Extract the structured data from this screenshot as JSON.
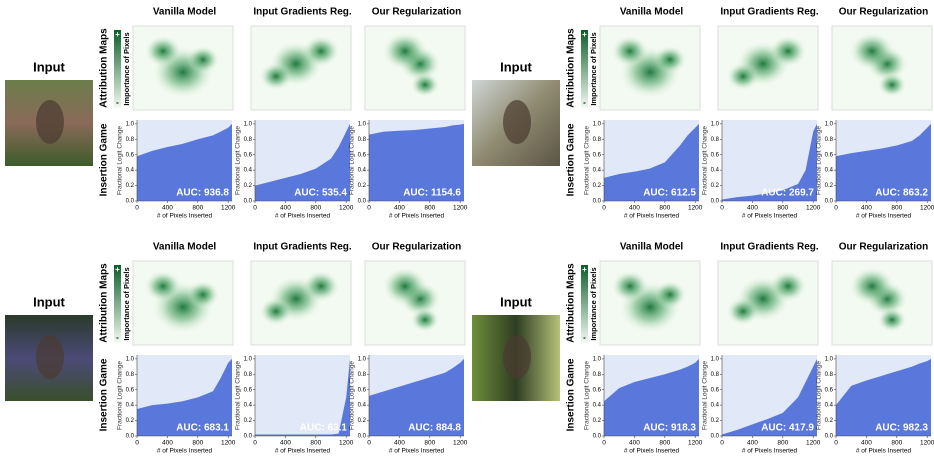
{
  "panels": [
    {
      "input_label": "Input",
      "row_labels": [
        "Attribution Maps",
        "Insertion Game"
      ],
      "colorbar_label": "Importance of Pixels",
      "colorbar_plus": "+",
      "colorbar_minus": "-"
    },
    {
      "input_label": "Input",
      "row_labels": [
        "Attribution Maps",
        "Insertion Game"
      ],
      "colorbar_label": "Importance of Pixels",
      "colorbar_plus": "+",
      "colorbar_minus": "-"
    },
    {
      "input_label": "Input",
      "row_labels": [
        "Attribution Maps",
        "Insertion Game"
      ],
      "colorbar_label": "Importance of Pixels",
      "colorbar_plus": "+",
      "colorbar_minus": "-"
    },
    {
      "input_label": "Input",
      "row_labels": [
        "Attribution Maps",
        "Insertion Game"
      ],
      "colorbar_label": "Importance of Pixels",
      "colorbar_plus": "+",
      "colorbar_minus": "-"
    }
  ],
  "chart_data": [
    {
      "type": "area",
      "title": "Vanilla Model",
      "x": [
        0,
        200,
        400,
        600,
        800,
        1000,
        1100,
        1200,
        1250
      ],
      "values": [
        0.58,
        0.65,
        0.7,
        0.74,
        0.8,
        0.85,
        0.9,
        0.95,
        1.0
      ],
      "color": "#5a78dc",
      "xlim": [
        0,
        1250
      ],
      "xticks": [
        0,
        400,
        800,
        1200
      ],
      "ylim": [
        0,
        1.05
      ],
      "yticks": [
        {
          "value": 0,
          "label": "0.0"
        },
        0.2,
        0.4,
        0.6,
        0.8,
        {
          "value": 1,
          "label": "1.0"
        }
      ],
      "xlabel": "# of Pixels Inserted",
      "ylabel": "Fractional Logit Change",
      "annotation": "AUC: 936.8"
    },
    {
      "type": "area",
      "title": "Input Gradients Reg.",
      "x": [
        0,
        200,
        400,
        600,
        800,
        1000,
        1100,
        1200,
        1250
      ],
      "values": [
        0.2,
        0.25,
        0.3,
        0.35,
        0.42,
        0.55,
        0.7,
        0.9,
        1.0
      ],
      "color": "#5a78dc",
      "xlim": [
        0,
        1250
      ],
      "xticks": [
        0,
        400,
        800,
        1200
      ],
      "ylim": [
        0,
        1.05
      ],
      "yticks": [
        {
          "value": 0,
          "label": "0.0"
        },
        0.2,
        0.4,
        0.6,
        0.8,
        {
          "value": 1,
          "label": "1.0"
        }
      ],
      "xlabel": "# of Pixels Inserted",
      "ylabel": "Fractional Logit Change",
      "annotation": "AUC: 535.4"
    },
    {
      "type": "area",
      "title": "Our Regularization",
      "x": [
        0,
        200,
        400,
        600,
        800,
        1000,
        1100,
        1200,
        1250
      ],
      "values": [
        0.86,
        0.9,
        0.91,
        0.92,
        0.94,
        0.96,
        0.98,
        0.99,
        1.0
      ],
      "color": "#5a78dc",
      "xlim": [
        0,
        1250
      ],
      "xticks": [
        0,
        400,
        800,
        1200
      ],
      "ylim": [
        0,
        1.05
      ],
      "yticks": [
        {
          "value": 0,
          "label": "0.0"
        },
        0.2,
        0.4,
        0.6,
        0.8,
        {
          "value": 1,
          "label": "1.0"
        }
      ],
      "xlabel": "# of Pixels Inserted",
      "ylabel": "Fractional Logit Change",
      "annotation": "AUC: 1154.6"
    },
    {
      "type": "area",
      "title": "Vanilla Model",
      "x": [
        0,
        200,
        400,
        600,
        800,
        1000,
        1100,
        1200,
        1250
      ],
      "values": [
        0.3,
        0.35,
        0.38,
        0.42,
        0.5,
        0.72,
        0.85,
        0.95,
        1.0
      ],
      "color": "#5a78dc",
      "xlim": [
        0,
        1250
      ],
      "xticks": [
        0,
        400,
        800,
        1200
      ],
      "ylim": [
        0,
        1.05
      ],
      "yticks": [
        {
          "value": 0,
          "label": "0.0"
        },
        0.2,
        0.4,
        0.6,
        0.8,
        {
          "value": 1,
          "label": "1.0"
        }
      ],
      "xlabel": "# of Pixels Inserted",
      "ylabel": "Fractional Logit Change",
      "annotation": "AUC: 612.5"
    },
    {
      "type": "area",
      "title": "Input Gradients Reg.",
      "x": [
        0,
        200,
        400,
        600,
        800,
        1000,
        1100,
        1200,
        1250
      ],
      "values": [
        0.02,
        0.05,
        0.07,
        0.1,
        0.14,
        0.22,
        0.4,
        0.9,
        1.0
      ],
      "color": "#5a78dc",
      "xlim": [
        0,
        1250
      ],
      "xticks": [
        0,
        400,
        800,
        1200
      ],
      "ylim": [
        0,
        1.05
      ],
      "yticks": [
        {
          "value": 0,
          "label": "0.0"
        },
        0.2,
        0.4,
        0.6,
        0.8,
        {
          "value": 1,
          "label": "1.0"
        }
      ],
      "xlabel": "# of Pixels Inserted",
      "ylabel": "Fractional Logit Change",
      "annotation": "AUC: 269.7"
    },
    {
      "type": "area",
      "title": "Our Regularization",
      "x": [
        0,
        200,
        400,
        600,
        800,
        1000,
        1100,
        1200,
        1250
      ],
      "values": [
        0.58,
        0.62,
        0.65,
        0.68,
        0.72,
        0.78,
        0.85,
        0.95,
        1.0
      ],
      "color": "#5a78dc",
      "xlim": [
        0,
        1250
      ],
      "xticks": [
        0,
        400,
        800,
        1200
      ],
      "ylim": [
        0,
        1.05
      ],
      "yticks": [
        {
          "value": 0,
          "label": "0.0"
        },
        0.2,
        0.4,
        0.6,
        0.8,
        {
          "value": 1,
          "label": "1.0"
        }
      ],
      "xlabel": "# of Pixels Inserted",
      "ylabel": "Fractional Logit Change",
      "annotation": "AUC: 863.2"
    },
    {
      "type": "area",
      "title": "Vanilla Model",
      "x": [
        0,
        200,
        400,
        600,
        800,
        1000,
        1100,
        1200,
        1250
      ],
      "values": [
        0.35,
        0.4,
        0.42,
        0.45,
        0.5,
        0.58,
        0.75,
        0.95,
        1.0
      ],
      "color": "#5a78dc",
      "xlim": [
        0,
        1250
      ],
      "xticks": [
        0,
        400,
        800,
        1200
      ],
      "ylim": [
        0,
        1.05
      ],
      "yticks": [
        {
          "value": 0,
          "label": "0.0"
        },
        0.2,
        0.4,
        0.6,
        0.8,
        {
          "value": 1,
          "label": "1.0"
        }
      ],
      "xlabel": "# of Pixels Inserted",
      "ylabel": "Fractional Logit Change",
      "annotation": "AUC: 683.1"
    },
    {
      "type": "area",
      "title": "Input Gradients Reg.",
      "x": [
        0,
        200,
        400,
        600,
        800,
        1000,
        1100,
        1200,
        1250
      ],
      "values": [
        0.02,
        0.02,
        0.02,
        0.02,
        0.02,
        0.02,
        0.03,
        0.5,
        1.0
      ],
      "color": "#5a78dc",
      "xlim": [
        0,
        1250
      ],
      "xticks": [
        0,
        400,
        800,
        1200
      ],
      "ylim": [
        0,
        1.05
      ],
      "yticks": [
        {
          "value": 0,
          "label": "0.0"
        },
        0.2,
        0.4,
        0.6,
        0.8,
        {
          "value": 1,
          "label": "1.0"
        }
      ],
      "xlabel": "# of Pixels Inserted",
      "ylabel": "Fractional Logit Change",
      "annotation": "AUC: 63.1"
    },
    {
      "type": "area",
      "title": "Our Regularization",
      "x": [
        0,
        200,
        400,
        600,
        800,
        1000,
        1100,
        1200,
        1250
      ],
      "values": [
        0.52,
        0.58,
        0.64,
        0.7,
        0.76,
        0.82,
        0.88,
        0.95,
        1.0
      ],
      "color": "#5a78dc",
      "xlim": [
        0,
        1250
      ],
      "xticks": [
        0,
        400,
        800,
        1200
      ],
      "ylim": [
        0,
        1.05
      ],
      "yticks": [
        {
          "value": 0,
          "label": "0.0"
        },
        0.2,
        0.4,
        0.6,
        0.8,
        {
          "value": 1,
          "label": "1.0"
        }
      ],
      "xlabel": "# of Pixels Inserted",
      "ylabel": "Fractional Logit Change",
      "annotation": "AUC: 884.8"
    },
    {
      "type": "area",
      "title": "Vanilla Model",
      "x": [
        0,
        200,
        400,
        600,
        800,
        1000,
        1100,
        1200,
        1250
      ],
      "values": [
        0.45,
        0.62,
        0.7,
        0.75,
        0.8,
        0.86,
        0.9,
        0.95,
        1.0
      ],
      "color": "#5a78dc",
      "xlim": [
        0,
        1250
      ],
      "xticks": [
        0,
        400,
        800,
        1200
      ],
      "ylim": [
        0,
        1.05
      ],
      "yticks": [
        {
          "value": 0,
          "label": "0.0"
        },
        0.2,
        0.4,
        0.6,
        0.8,
        {
          "value": 1,
          "label": "1.0"
        }
      ],
      "xlabel": "# of Pixels Inserted",
      "ylabel": "Fractional Logit Change",
      "annotation": "AUC: 918.3"
    },
    {
      "type": "area",
      "title": "Input Gradients Reg.",
      "x": [
        0,
        200,
        400,
        600,
        800,
        1000,
        1100,
        1200,
        1250
      ],
      "values": [
        0.02,
        0.08,
        0.15,
        0.22,
        0.3,
        0.5,
        0.7,
        0.9,
        1.0
      ],
      "color": "#5a78dc",
      "xlim": [
        0,
        1250
      ],
      "xticks": [
        0,
        400,
        800,
        1200
      ],
      "ylim": [
        0,
        1.05
      ],
      "yticks": [
        {
          "value": 0,
          "label": "0.0"
        },
        0.2,
        0.4,
        0.6,
        0.8,
        {
          "value": 1,
          "label": "1.0"
        }
      ],
      "xlabel": "# of Pixels Inserted",
      "ylabel": "Fractional Logit Change",
      "annotation": "AUC: 417.9"
    },
    {
      "type": "area",
      "title": "Our Regularization",
      "x": [
        0,
        200,
        400,
        600,
        800,
        1000,
        1100,
        1200,
        1250
      ],
      "values": [
        0.4,
        0.65,
        0.72,
        0.78,
        0.84,
        0.9,
        0.94,
        0.97,
        1.0
      ],
      "color": "#5a78dc",
      "xlim": [
        0,
        1250
      ],
      "xticks": [
        0,
        400,
        800,
        1200
      ],
      "ylim": [
        0,
        1.05
      ],
      "yticks": [
        {
          "value": 0,
          "label": "0.0"
        },
        0.2,
        0.4,
        0.6,
        0.8,
        {
          "value": 1,
          "label": "1.0"
        }
      ],
      "xlabel": "# of Pixels Inserted",
      "ylabel": "Fractional Logit Change",
      "annotation": "AUC: 982.3"
    }
  ]
}
